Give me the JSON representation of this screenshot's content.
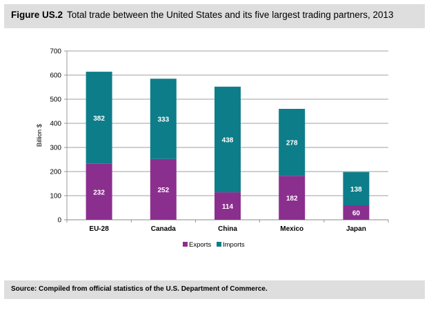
{
  "figure": {
    "label": "Figure US.2",
    "title": "Total trade between the United States and its five largest trading partners, 2013"
  },
  "source": "Source: Compiled from official statistics of the U.S. Department of Commerce.",
  "colors": {
    "exports": "#8B2F8F",
    "imports": "#0E7D8A",
    "label": "#ffffff"
  },
  "chart_data": {
    "type": "bar",
    "stacked": true,
    "title": "Total trade between the United States and its five largest trading partners, 2013",
    "xlabel": "",
    "ylabel": "Billion $",
    "ylim": [
      0,
      700
    ],
    "yticks": [
      0,
      100,
      200,
      300,
      400,
      500,
      600,
      700
    ],
    "categories": [
      "EU-28",
      "Canada",
      "China",
      "Mexico",
      "Japan"
    ],
    "series": [
      {
        "name": "Exports",
        "values": [
          232,
          252,
          114,
          182,
          60
        ]
      },
      {
        "name": "Imports",
        "values": [
          382,
          333,
          438,
          278,
          138
        ]
      }
    ],
    "legend": "bottom-center",
    "grid": true
  }
}
